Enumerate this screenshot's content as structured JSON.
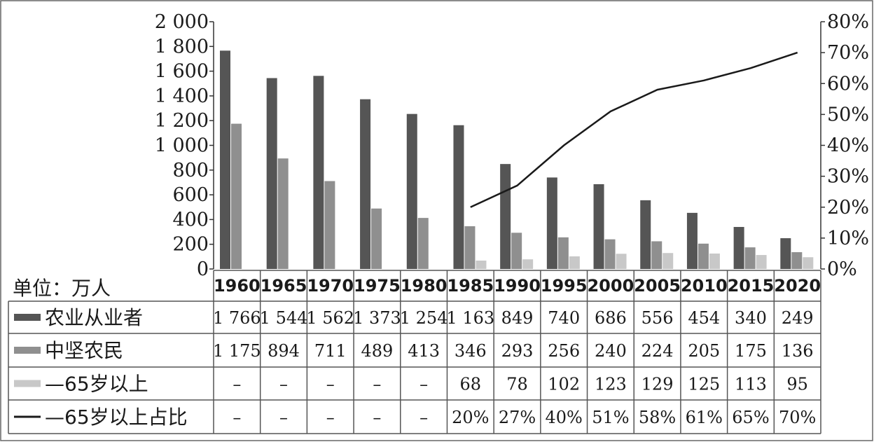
{
  "chart_data": {
    "type": "bar",
    "categories": [
      "1960",
      "1965",
      "1970",
      "1975",
      "1980",
      "1985",
      "1990",
      "1995",
      "2000",
      "2005",
      "2010",
      "2015",
      "2020"
    ],
    "unit_label": "单位：万人",
    "y_left": {
      "ylim": [
        0,
        2000
      ],
      "ticks": [
        "0",
        "200",
        "400",
        "600",
        "800",
        "1 000",
        "1 200",
        "1 400",
        "1 600",
        "1 800",
        "2 000"
      ]
    },
    "y_right": {
      "ylim": [
        0,
        80
      ],
      "ticks": [
        "0%",
        "10%",
        "20%",
        "30%",
        "40%",
        "50%",
        "60%",
        "70%",
        "80%"
      ]
    },
    "series": [
      {
        "name": "农业从业者",
        "kind": "bar",
        "color": "#555555",
        "values": [
          1766,
          1544,
          1562,
          1373,
          1254,
          1163,
          849,
          740,
          686,
          556,
          454,
          340,
          249
        ],
        "labels": [
          "1 766",
          "1 544",
          "1 562",
          "1 373",
          "1 254",
          "1 163",
          "849",
          "740",
          "686",
          "556",
          "454",
          "340",
          "249"
        ]
      },
      {
        "name": "中坚农民",
        "kind": "bar",
        "color": "#8f8f8f",
        "values": [
          1175,
          894,
          711,
          489,
          413,
          346,
          293,
          256,
          240,
          224,
          205,
          175,
          136
        ],
        "labels": [
          "1 175",
          "894",
          "711",
          "489",
          "413",
          "346",
          "293",
          "256",
          "240",
          "224",
          "205",
          "175",
          "136"
        ]
      },
      {
        "name": "—65岁以上",
        "kind": "bar",
        "color": "#c8c8c8",
        "values": [
          null,
          null,
          null,
          null,
          null,
          68,
          78,
          102,
          123,
          129,
          125,
          113,
          95
        ],
        "labels": [
          "–",
          "–",
          "–",
          "–",
          "–",
          "68",
          "78",
          "102",
          "123",
          "129",
          "125",
          "113",
          "95"
        ]
      },
      {
        "name": "—65岁以上占比",
        "kind": "line",
        "axis": "right",
        "color": "#1a1a1a",
        "values": [
          null,
          null,
          null,
          null,
          null,
          20,
          27,
          40,
          51,
          58,
          61,
          65,
          70
        ],
        "labels": [
          "–",
          "–",
          "–",
          "–",
          "–",
          "20%",
          "27%",
          "40%",
          "51%",
          "58%",
          "61%",
          "65%",
          "70%"
        ]
      }
    ]
  }
}
